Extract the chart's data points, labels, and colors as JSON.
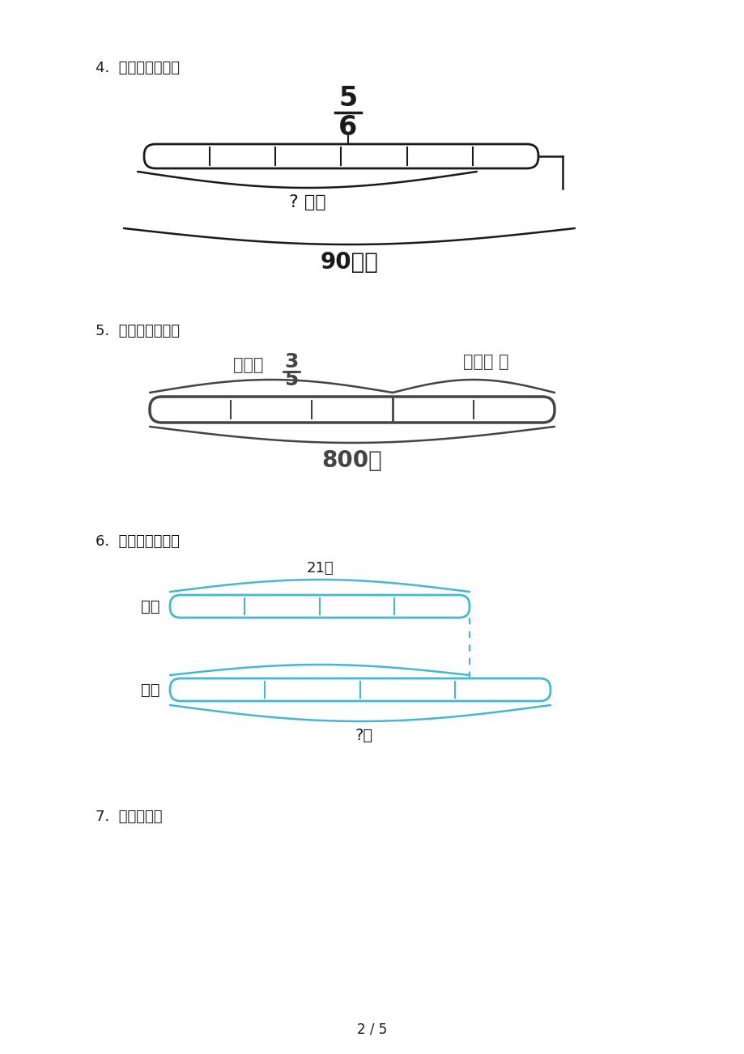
{
  "bg_color": "#ffffff",
  "page_width": 9.2,
  "page_height": 13.02,
  "section4_label": "4.  看图列式计算。",
  "section5_label": "5.  看图列式计算。",
  "section6_label": "6.  看图列式计算。",
  "section7_label": "7.  列式计算。",
  "frac4_num": "5",
  "frac4_den": "6",
  "label4_below": "? 千米",
  "label4_total": "90千米",
  "label5_left": "完成了",
  "frac5_num": "3",
  "frac5_den": "5",
  "label5_right": "还剩？ 个",
  "label5_total": "800个",
  "label6_21": "21个",
  "label6_basketball": "笼球",
  "label6_volleyball": "排球",
  "label6_question": "?个",
  "page_num": "2 / 5",
  "cyan_color": "#45B8D0",
  "black_color": "#1a1a1a",
  "gray_color": "#555555",
  "dark_gray": "#444444"
}
